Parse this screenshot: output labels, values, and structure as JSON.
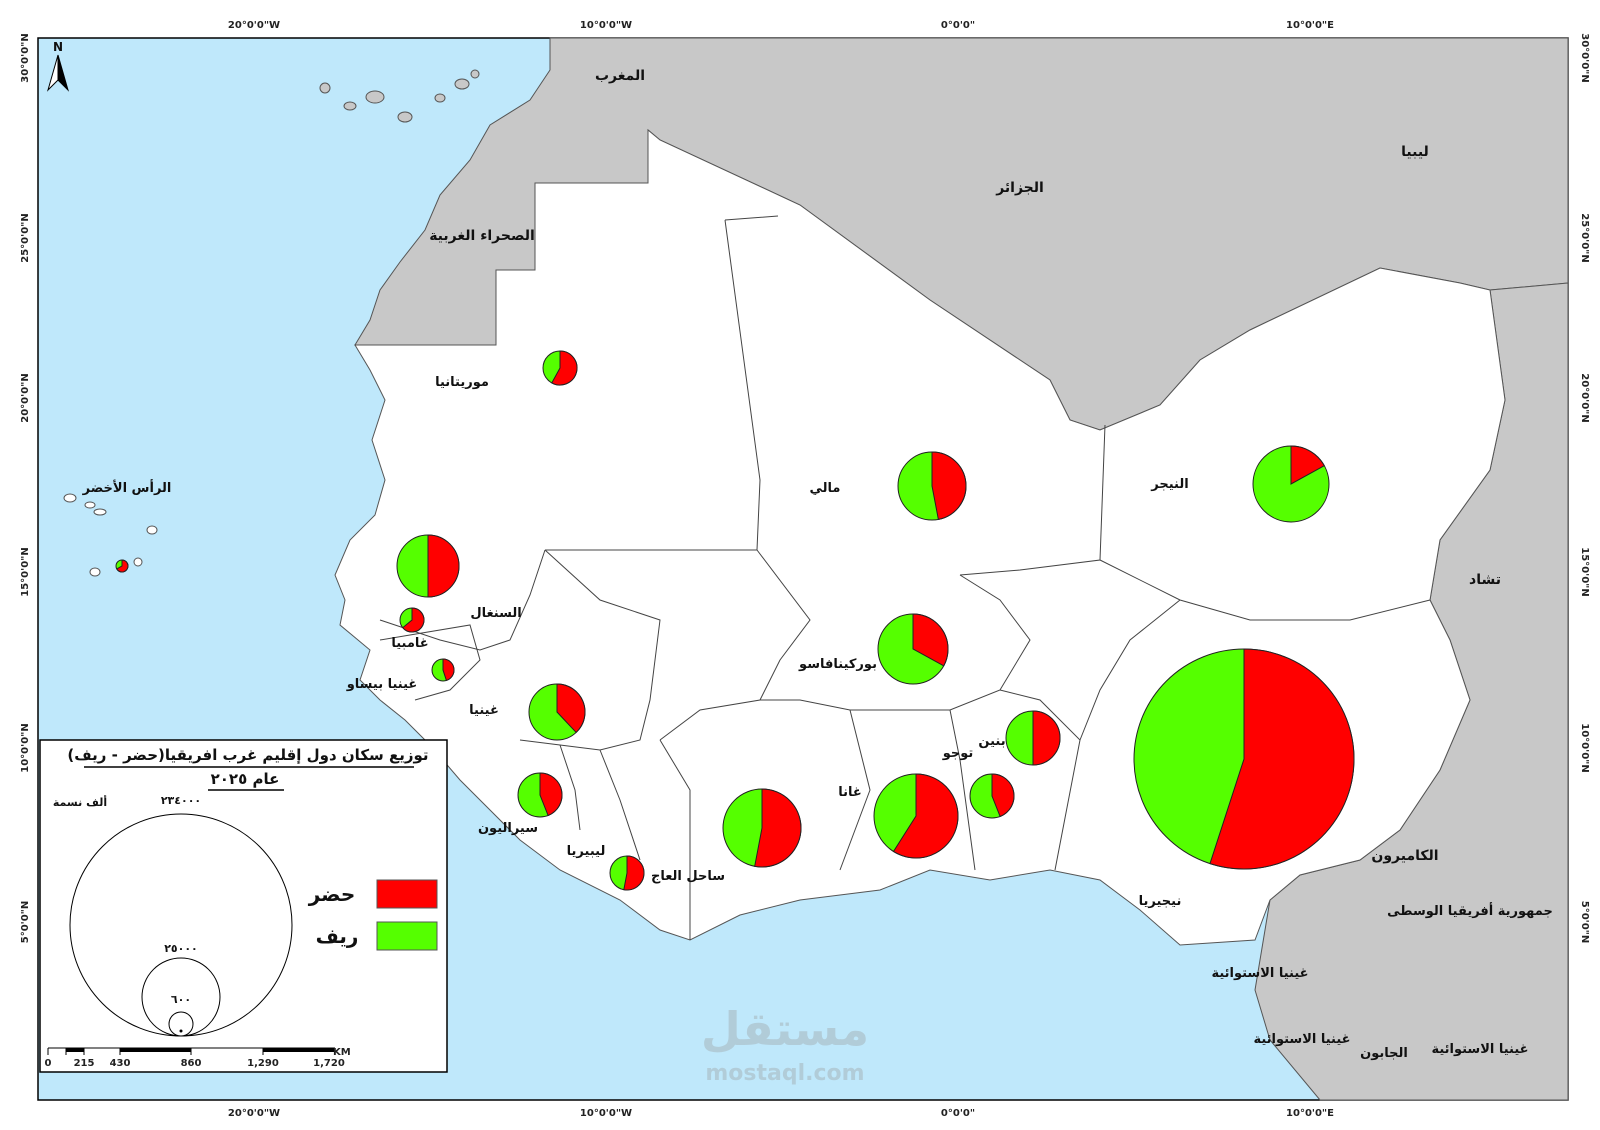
{
  "map": {
    "legend": {
      "title_line1": "توزيع سكان دول إقليم غرب افريقيا(حضر - ريف)",
      "title_line2": "عام ٢٠٢٥",
      "unit": "ألف نسمة",
      "circle_values": [
        "٢٣٤٠٠٠",
        "٢٥٠٠٠",
        "٦٠٠"
      ],
      "urban_label": "حضر",
      "rural_label": "ريف",
      "urban_color": "#ff0000",
      "rural_color": "#55ff00",
      "scale_ticks": [
        "0",
        "215",
        "430",
        "860",
        "1,290",
        "1,720"
      ],
      "scale_unit": "KM"
    },
    "north_arrow": "N",
    "watermark": {
      "arabic": "مستقل",
      "latin": "mostaql.com"
    },
    "coords_top": [
      "20°0'0\"W",
      "10°0'0\"W",
      "0°0'0\"",
      "10°0'0\"E"
    ],
    "coords_bottom": [
      "20°0'0\"W",
      "10°0'0\"W",
      "0°0'0\"",
      "10°0'0\"E"
    ],
    "coords_side": [
      "30°0'0\"N",
      "25°0'0\"N",
      "20°0'0\"N",
      "15°0'0\"N",
      "10°0'0\"N",
      "5°0'0\"N"
    ],
    "neighbors": [
      "المغرب",
      "الجزائر",
      "ليبيا",
      "الصحراء الغربية",
      "تشاد",
      "الكاميرون",
      "جمهورية أفريقيا الوسطى",
      "غينيا الاستوائية",
      "الجابون",
      "غينيا الاستوائية",
      "غينيا الاستوائية"
    ],
    "countries": [
      "موريتانيا",
      "مالي",
      "النيجر",
      "الرأس الأخضر",
      "السنغال",
      "غامبيا",
      "غينيا بيساو",
      "غينيا",
      "بوركينافاسو",
      "سيراليون",
      "ليبيريا",
      "ساحل العاج",
      "غانا",
      "توجو",
      "بنين",
      "نيجيريا"
    ]
  },
  "chart_data": {
    "type": "pie",
    "title": "توزيع سكان دول إقليم غرب افريقيا(حضر - ريف)",
    "subtitle": "عام ٢٠٢٥",
    "series": [
      "حضر",
      "ريف"
    ],
    "note": "pie circle area proportional to total population; values are urban share (fraction)",
    "pies": [
      {
        "country": "موريتانيا",
        "urban_share": 0.58
      },
      {
        "country": "مالي",
        "urban_share": 0.47
      },
      {
        "country": "النيجر",
        "urban_share": 0.17
      },
      {
        "country": "الرأس الأخضر",
        "urban_share": 0.67
      },
      {
        "country": "السنغال",
        "urban_share": 0.5
      },
      {
        "country": "غامبيا",
        "urban_share": 0.64
      },
      {
        "country": "غينيا بيساو",
        "urban_share": 0.45
      },
      {
        "country": "غينيا",
        "urban_share": 0.38
      },
      {
        "country": "بوركينافاسو",
        "urban_share": 0.33
      },
      {
        "country": "سيراليون",
        "urban_share": 0.44
      },
      {
        "country": "ليبيريا",
        "urban_share": 0.53
      },
      {
        "country": "ساحل العاج",
        "urban_share": 0.53
      },
      {
        "country": "غانا",
        "urban_share": 0.59
      },
      {
        "country": "توجو",
        "urban_share": 0.44
      },
      {
        "country": "بنين",
        "urban_share": 0.5
      },
      {
        "country": "نيجيريا",
        "urban_share": 0.55
      }
    ]
  }
}
